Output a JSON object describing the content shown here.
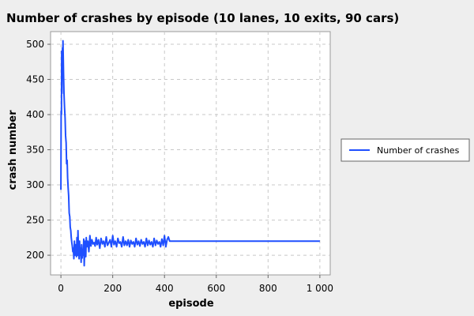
{
  "chart_data": {
    "type": "line",
    "title": "Number of crashes by episode (10 lanes, 10 exits, 90 cars)",
    "xlabel": "episode",
    "ylabel": "crash number",
    "xlim": [
      -40,
      1040
    ],
    "ylim": [
      172,
      518
    ],
    "xticks": [
      0,
      200,
      400,
      600,
      800,
      1000
    ],
    "xtick_labels": [
      "0",
      "200",
      "400",
      "600",
      "800",
      "1 000"
    ],
    "yticks": [
      200,
      250,
      300,
      350,
      400,
      450,
      500
    ],
    "ytick_labels": [
      "200",
      "250",
      "300",
      "350",
      "400",
      "450",
      "500"
    ],
    "grid": true,
    "legend_position": "right",
    "series": [
      {
        "name": "Number of crashes",
        "color": "#1f4fff",
        "x": [
          0,
          1,
          2,
          3,
          4,
          5,
          6,
          7,
          8,
          9,
          10,
          12,
          14,
          16,
          18,
          20,
          22,
          24,
          26,
          28,
          30,
          32,
          34,
          36,
          38,
          40,
          42,
          44,
          46,
          48,
          50,
          52,
          54,
          56,
          58,
          60,
          62,
          64,
          66,
          68,
          70,
          72,
          74,
          76,
          78,
          80,
          82,
          84,
          86,
          88,
          90,
          92,
          94,
          96,
          98,
          100,
          104,
          108,
          112,
          116,
          120,
          124,
          128,
          132,
          136,
          140,
          145,
          150,
          155,
          160,
          165,
          170,
          175,
          180,
          185,
          190,
          195,
          200,
          205,
          210,
          215,
          220,
          225,
          230,
          235,
          240,
          245,
          250,
          255,
          260,
          265,
          270,
          275,
          280,
          285,
          290,
          295,
          300,
          305,
          310,
          315,
          320,
          325,
          330,
          335,
          340,
          345,
          350,
          355,
          360,
          365,
          370,
          375,
          380,
          385,
          390,
          395,
          400,
          405,
          410,
          415,
          420,
          1000
        ],
        "values": [
          293,
          405,
          400,
          490,
          430,
          485,
          495,
          470,
          505,
          480,
          460,
          430,
          410,
          395,
          370,
          360,
          330,
          335,
          310,
          295,
          285,
          260,
          255,
          240,
          235,
          225,
          218,
          213,
          205,
          210,
          195,
          220,
          200,
          215,
          205,
          198,
          225,
          200,
          235,
          205,
          195,
          220,
          200,
          210,
          190,
          215,
          196,
          208,
          200,
          223,
          185,
          210,
          220,
          198,
          225,
          212,
          220,
          205,
          228,
          213,
          222,
          216,
          218,
          213,
          225,
          215,
          222,
          210,
          224,
          216,
          220,
          212,
          226,
          214,
          218,
          222,
          212,
          228,
          215,
          220,
          212,
          224,
          217,
          219,
          212,
          226,
          214,
          220,
          214,
          222,
          212,
          221,
          216,
          219,
          212,
          224,
          215,
          220,
          213,
          222,
          216,
          219,
          212,
          224,
          214,
          221,
          215,
          219,
          212,
          224,
          214,
          221,
          216,
          219,
          212,
          223,
          214,
          228,
          212,
          222,
          226,
          220,
          220
        ]
      }
    ]
  }
}
